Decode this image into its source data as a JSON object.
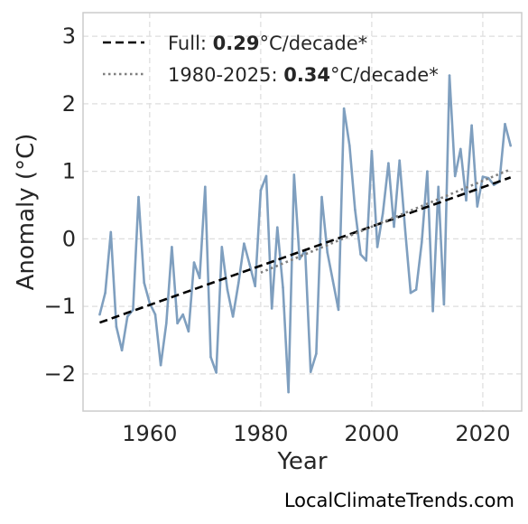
{
  "chart_data": {
    "type": "line",
    "xlabel": "Year",
    "ylabel": "Anomaly (°C)",
    "xlim": [
      1948,
      2027
    ],
    "ylim": [
      -2.55,
      3.35
    ],
    "xticks": [
      1960,
      1980,
      2000,
      2020
    ],
    "yticks": [
      -2,
      -1,
      0,
      1,
      2,
      3
    ],
    "grid": true,
    "legend_position": "top-left",
    "series": [
      {
        "x": [
          1951,
          1952,
          1953,
          1954,
          1955,
          1956,
          1957,
          1958,
          1959,
          1960,
          1961,
          1962,
          1963,
          1964,
          1965,
          1966,
          1967,
          1968,
          1969,
          1970,
          1971,
          1972,
          1973,
          1974,
          1975,
          1976,
          1977,
          1978,
          1979,
          1980,
          1981,
          1982,
          1983,
          1984,
          1985,
          1986,
          1987,
          1988,
          1989,
          1990,
          1991,
          1992,
          1993,
          1994,
          1995,
          1996,
          1997,
          1998,
          1999,
          2000,
          2001,
          2002,
          2003,
          2004,
          2005,
          2006,
          2007,
          2008,
          2009,
          2010,
          2011,
          2012,
          2013,
          2014,
          2015,
          2016,
          2017,
          2018,
          2019,
          2020,
          2021,
          2022,
          2023,
          2024,
          2025
        ],
        "y": [
          -1.12,
          -0.8,
          0.1,
          -1.3,
          -1.65,
          -1.15,
          -1.05,
          0.62,
          -0.65,
          -0.95,
          -1.12,
          -1.87,
          -1.25,
          -0.12,
          -1.25,
          -1.12,
          -1.37,
          -0.35,
          -0.58,
          0.77,
          -1.75,
          -1.98,
          -0.12,
          -0.75,
          -1.15,
          -0.65,
          -0.07,
          -0.38,
          -0.7,
          0.72,
          0.93,
          -1.03,
          0.17,
          -0.72,
          -2.27,
          0.95,
          -0.3,
          -0.17,
          -1.97,
          -1.7,
          0.62,
          -0.2,
          -0.62,
          -1.05,
          1.93,
          1.38,
          0.43,
          -0.23,
          -0.32,
          1.3,
          -0.12,
          0.38,
          1.12,
          0.18,
          1.16,
          0.15,
          -0.8,
          -0.75,
          -0.05,
          1.0,
          -1.07,
          0.77,
          -0.97,
          2.42,
          0.93,
          1.33,
          0.57,
          1.68,
          0.48,
          0.92,
          0.9,
          0.8,
          0.85,
          1.7,
          1.38
        ],
        "color": "#7f9fbf"
      }
    ],
    "trends": [
      {
        "label_prefix": "Full: ",
        "label_value": "0.29",
        "label_suffix": "°C/decade*",
        "x": [
          1951,
          2025
        ],
        "y": [
          -1.24,
          0.91
        ],
        "style": "dashed",
        "color": "#000000"
      },
      {
        "label_prefix": "1980-2025: ",
        "label_value": "0.34",
        "label_suffix": "°C/decade*",
        "x": [
          1980,
          2025
        ],
        "y": [
          -0.5,
          1.03
        ],
        "style": "dotted",
        "color": "#7f7f7f"
      }
    ]
  },
  "source_label": "LocalClimateTrends.com"
}
